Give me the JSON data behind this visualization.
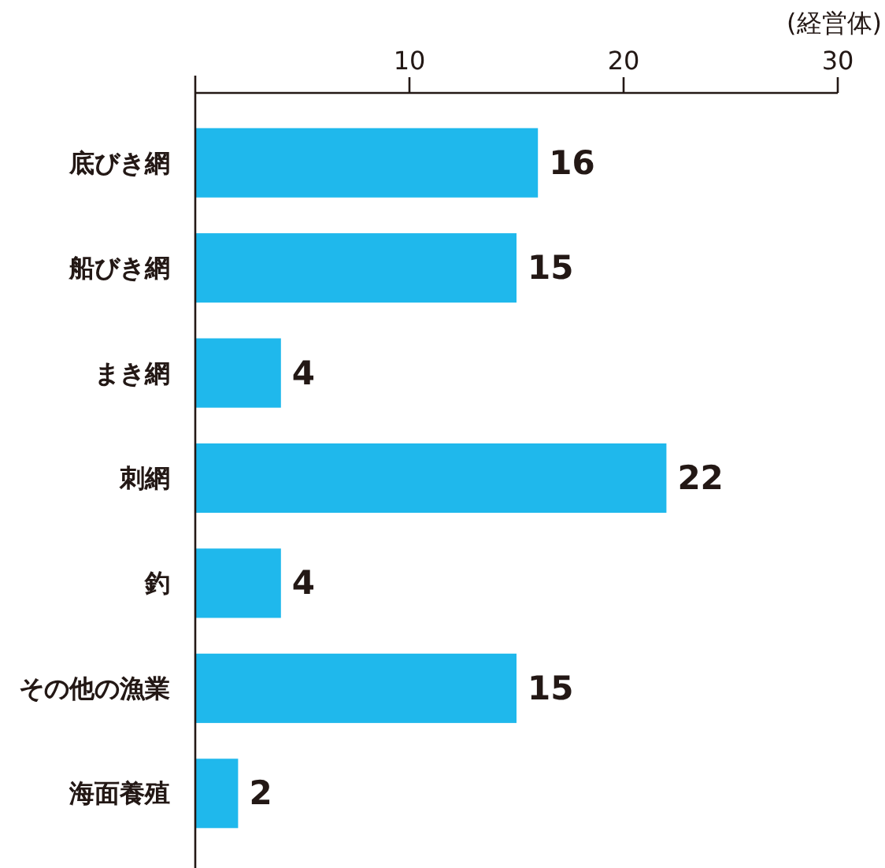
{
  "chart_data": {
    "type": "bar",
    "orientation": "horizontal",
    "categories": [
      "底びき網",
      "船びき網",
      "まき網",
      "刺網",
      "釣",
      "その他の漁業",
      "海面養殖"
    ],
    "values": [
      16,
      15,
      4,
      22,
      4,
      15,
      2
    ],
    "color": "#1fb8ec",
    "xlabel": "(経営体)",
    "xlim": [
      0,
      30
    ],
    "xticks": [
      10,
      20,
      30
    ],
    "data_labels": true
  }
}
